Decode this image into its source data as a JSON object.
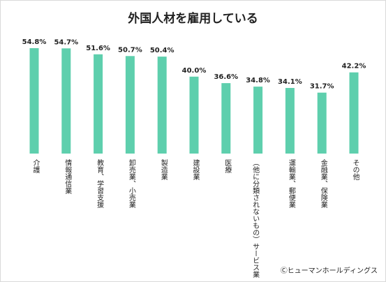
{
  "chart_data": {
    "type": "bar",
    "title": "外国人材を雇用している",
    "categories": [
      "介護",
      "情報通信業",
      "教育、学習支援",
      "卸売業、小売業",
      "製造業",
      "建設業",
      "医療",
      "サービス業（他に分類されないもの）",
      "運輸業、郵便業",
      "金融業、保険業",
      "その他"
    ],
    "category_lines": [
      [
        "介護"
      ],
      [
        "情報通信業"
      ],
      [
        "教育、学習支援"
      ],
      [
        "卸売業、小売業"
      ],
      [
        "製造業"
      ],
      [
        "建設業"
      ],
      [
        "医療"
      ],
      [
        "（他に分類されないもの）",
        "サービス業"
      ],
      [
        "運輸業、郵便業"
      ],
      [
        "金融業、保険業"
      ],
      [
        "その他"
      ]
    ],
    "values": [
      54.8,
      54.7,
      51.6,
      50.7,
      50.4,
      40.0,
      36.6,
      34.8,
      34.1,
      31.7,
      42.2
    ],
    "value_labels": [
      "54.8%",
      "54.7%",
      "51.6%",
      "50.7%",
      "50.4%",
      "40.0%",
      "36.6%",
      "34.8%",
      "34.1%",
      "31.7%",
      "42.2%"
    ],
    "ylim": [
      0,
      54.8
    ],
    "bar_color": "#5ecfad",
    "grid": false,
    "legend": "none"
  },
  "footer": {
    "copyright": "Ⓒヒューマンホールディングス"
  }
}
